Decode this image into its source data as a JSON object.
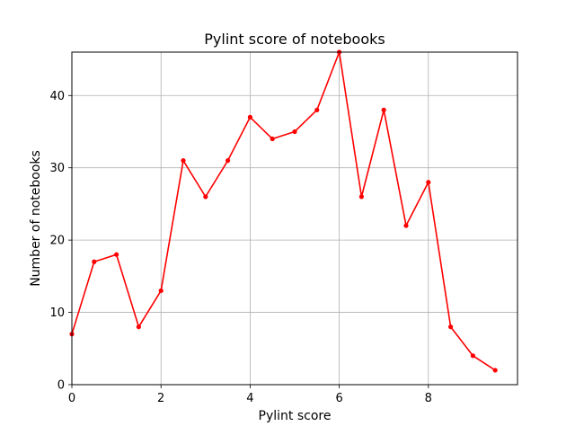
{
  "chart_data": {
    "type": "line",
    "title": "Pylint score of notebooks",
    "xlabel": "Pylint score",
    "ylabel": "Number of notebooks",
    "xlim": [
      0,
      10
    ],
    "ylim": [
      0,
      46
    ],
    "xticks": [
      0,
      2,
      4,
      6,
      8
    ],
    "yticks": [
      0,
      10,
      20,
      30,
      40
    ],
    "grid": true,
    "legend": "none",
    "series": [
      {
        "color": "#ff0000",
        "marker": "circle",
        "x": [
          0,
          0.5,
          1,
          1.5,
          2,
          2.5,
          3,
          3.5,
          4,
          4.5,
          5,
          5.5,
          6,
          6.5,
          7,
          7.5,
          8,
          8.5,
          9,
          9.5
        ],
        "values": [
          7,
          17,
          18,
          8,
          13,
          31,
          26,
          31,
          37,
          34,
          35,
          38,
          46,
          26,
          38,
          22,
          28,
          8,
          4,
          2
        ]
      }
    ]
  }
}
